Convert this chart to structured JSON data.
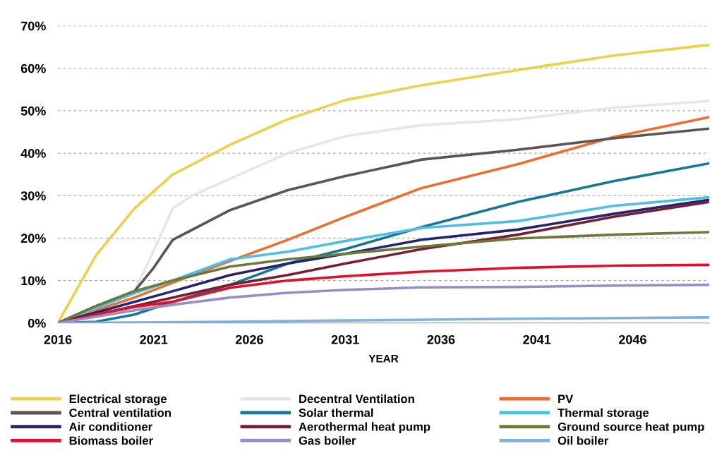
{
  "chart_data": {
    "type": "line",
    "xlabel": "YEAR",
    "x": [
      2016,
      2018,
      2020,
      2022,
      2025,
      2028,
      2031,
      2035,
      2040,
      2045,
      2050
    ],
    "series": [
      {
        "name": "Electrical storage",
        "color": "#f0d04a",
        "values": [
          0,
          16,
          27,
          35,
          42,
          48,
          52.5,
          56,
          59.6,
          63,
          65.5
        ]
      },
      {
        "name": "Decentral Ventilation",
        "color": "#e6e6e6",
        "x": [
          2016,
          2018,
          2020,
          2021,
          2022,
          2023,
          2025,
          2028,
          2031,
          2035,
          2040,
          2045,
          2050
        ],
        "values": [
          0,
          4,
          7.5,
          17,
          27,
          30,
          34,
          40,
          44,
          46.6,
          48,
          50.7,
          52.3
        ]
      },
      {
        "name": "PV",
        "color": "#f26d2d",
        "values": [
          0,
          3,
          6,
          9.5,
          14.6,
          19.6,
          25,
          31.8,
          37.4,
          43.8,
          48.5
        ]
      },
      {
        "name": "Central ventilation",
        "color": "#5e5450",
        "x": [
          2016,
          2018,
          2020,
          2021,
          2022,
          2025,
          2028,
          2031,
          2035,
          2040,
          2045,
          2050
        ],
        "values": [
          0,
          4,
          7.5,
          13,
          19.6,
          26.6,
          31.3,
          34.6,
          38.5,
          40.8,
          43.5,
          45.8
        ]
      },
      {
        "name": "Solar thermal",
        "color": "#167896",
        "values": [
          0,
          0.3,
          2,
          5,
          9,
          14,
          17.4,
          22.6,
          28.5,
          33.4,
          37.6
        ]
      },
      {
        "name": "Thermal storage",
        "color": "#4fbfe6",
        "values": [
          0,
          3.5,
          7,
          10,
          15,
          16.8,
          19.3,
          22.4,
          24,
          27.6,
          29.6
        ]
      },
      {
        "name": "Air conditioner",
        "color": "#24256e",
        "values": [
          0,
          2.5,
          5,
          7.5,
          11.3,
          14,
          16.3,
          19.6,
          22,
          25.7,
          29
        ]
      },
      {
        "name": "Aerothermal heat pump",
        "color": "#7a1e34",
        "values": [
          0,
          2,
          4,
          6,
          9,
          11.3,
          14,
          17.4,
          20.8,
          25,
          28.5
        ]
      },
      {
        "name": "Ground source heat pump",
        "color": "#6b7a3c",
        "values": [
          0,
          4,
          7.5,
          10,
          13.3,
          15,
          16.3,
          18,
          19.9,
          20.8,
          21.4
        ]
      },
      {
        "name": "Biomass boiler",
        "color": "#e0102a",
        "values": [
          0,
          2,
          3.8,
          5,
          8.3,
          10,
          11,
          12.1,
          13,
          13.5,
          13.7
        ]
      },
      {
        "name": "Gas boiler",
        "color": "#9a8cc4",
        "values": [
          0,
          1.5,
          3,
          4.3,
          6,
          7.1,
          7.8,
          8.4,
          8.5,
          8.8,
          9
        ]
      },
      {
        "name": "Oil boiler",
        "color": "#7fb2dc",
        "x": [
          2016,
          2025,
          2031,
          2040,
          2050
        ],
        "values": [
          0,
          0.3,
          0.6,
          1,
          1.3
        ]
      }
    ],
    "xlim": [
      2016,
      2050
    ],
    "xticks": [
      2016,
      2021,
      2026,
      2031,
      2036,
      2041,
      2046
    ],
    "ylim": [
      0,
      70
    ],
    "yticks": [
      {
        "value": 0,
        "label": "0%"
      },
      {
        "value": 10,
        "label": "10%"
      },
      {
        "value": 20,
        "label": "20%"
      },
      {
        "value": 30,
        "label": "30%"
      },
      {
        "value": 40,
        "label": "40%"
      },
      {
        "value": 50,
        "label": "50%"
      },
      {
        "value": 60,
        "label": "60%"
      },
      {
        "value": 70,
        "label": "70%"
      }
    ],
    "grid": "y",
    "legend": "bottom",
    "line_style": "solid",
    "marker": "none"
  }
}
